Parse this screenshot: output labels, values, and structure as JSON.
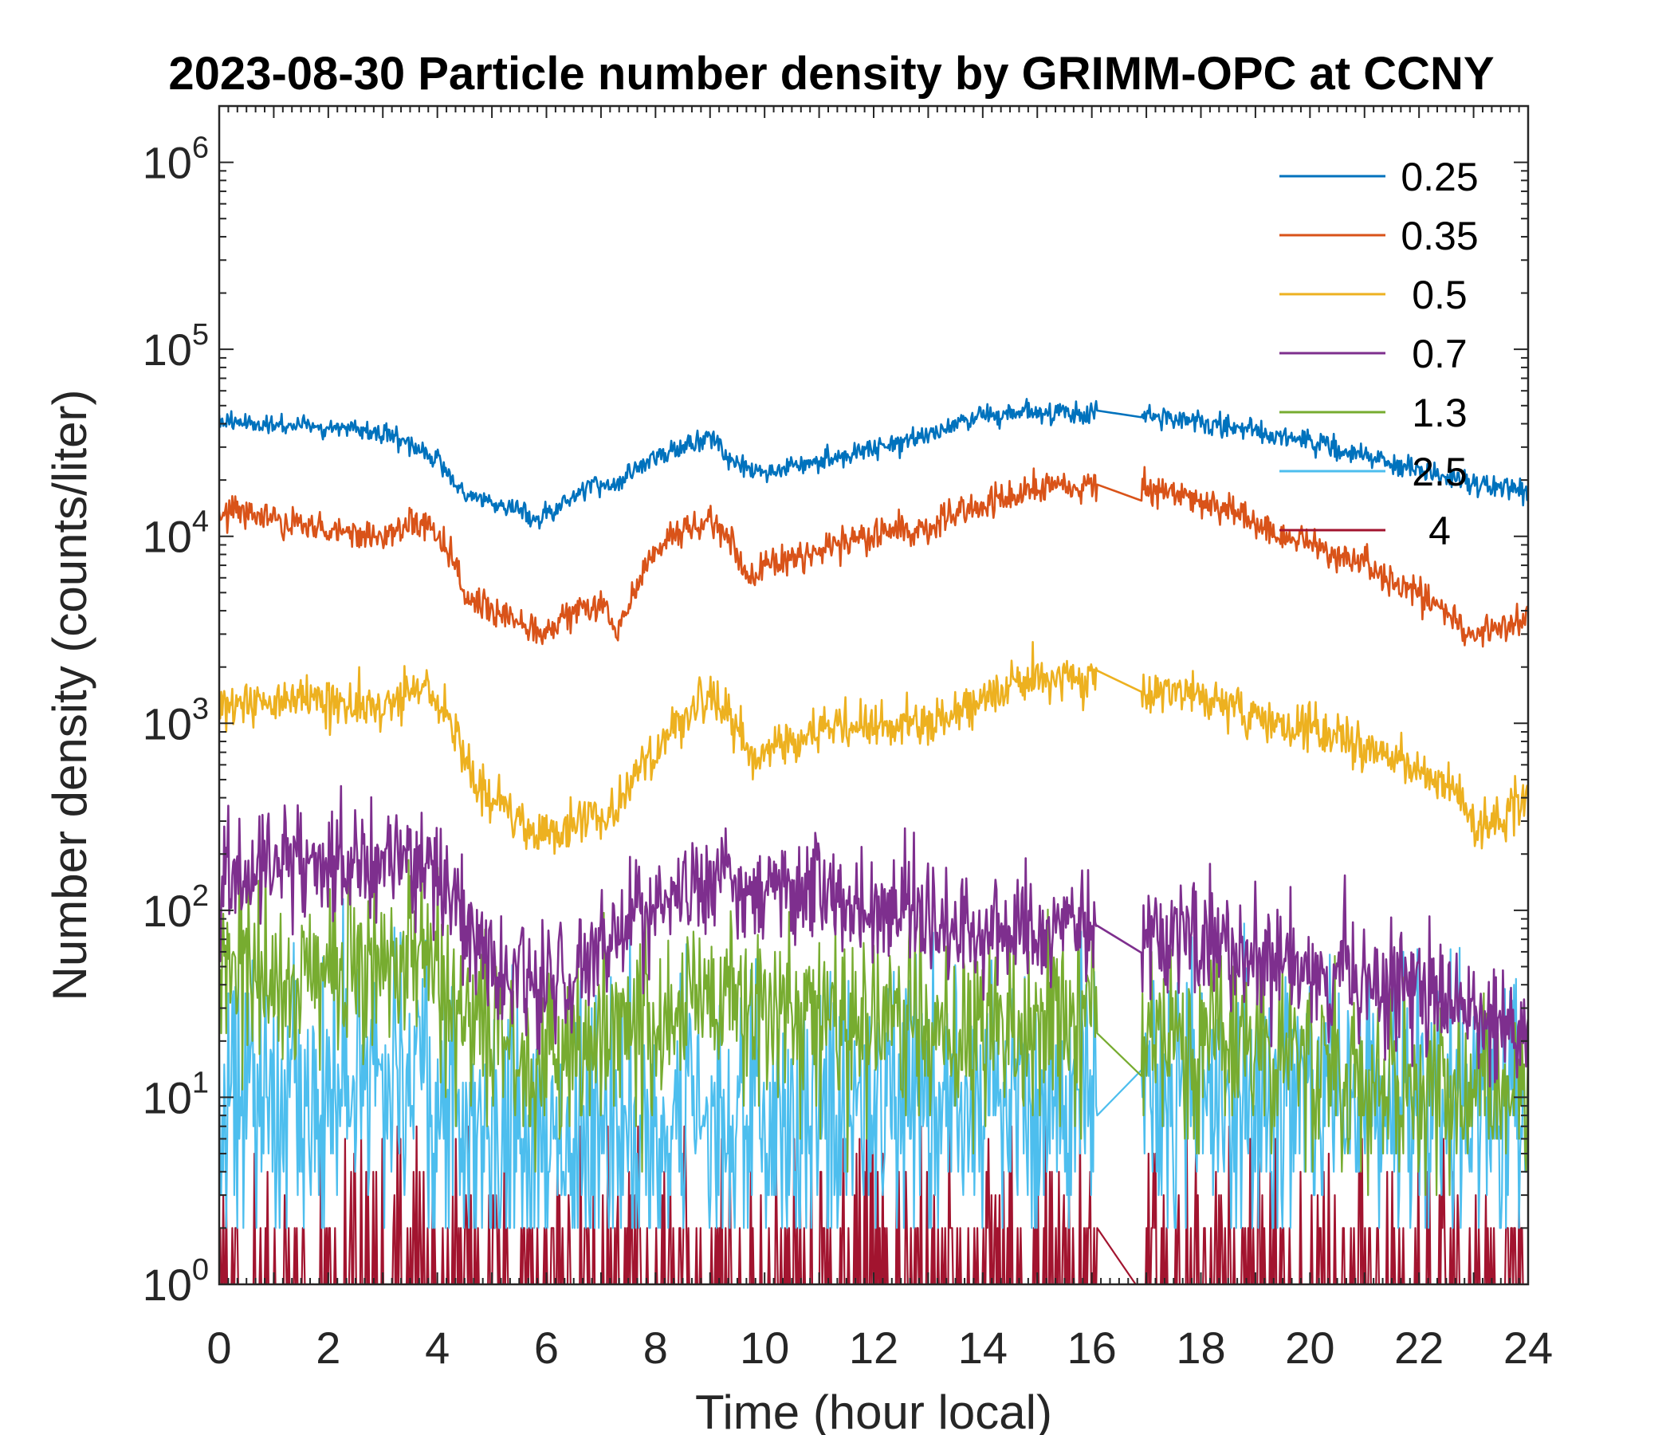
{
  "chart_data": {
    "type": "line",
    "title": "2023-08-30 Particle number density by GRIMM-OPC at CCNY",
    "xlabel": "Time (hour local)",
    "ylabel": "Number density (counts/liter)",
    "xlim": [
      0,
      24
    ],
    "ylim": [
      1,
      2000000
    ],
    "yscale": "log",
    "xticks": [
      "0",
      "2",
      "4",
      "6",
      "8",
      "10",
      "12",
      "14",
      "16",
      "18",
      "20",
      "22",
      "24"
    ],
    "yticks": [
      {
        "base": "10",
        "exp": "0"
      },
      {
        "base": "10",
        "exp": "1"
      },
      {
        "base": "10",
        "exp": "2"
      },
      {
        "base": "10",
        "exp": "3"
      },
      {
        "base": "10",
        "exp": "4"
      },
      {
        "base": "10",
        "exp": "5"
      },
      {
        "base": "10",
        "exp": "6"
      }
    ],
    "gap_hours": [
      16.1,
      16.9
    ],
    "legend_position": "top-right",
    "series": [
      {
        "name": "0.25",
        "color": "#0072BD",
        "x": [
          0,
          1,
          2,
          3,
          3.5,
          4,
          4.5,
          5,
          5.5,
          5.8,
          6.3,
          6.8,
          7.3,
          7.8,
          8.3,
          9,
          9.5,
          10,
          11,
          12,
          13,
          14,
          15,
          16,
          17,
          18,
          19,
          20,
          21,
          22,
          23,
          24
        ],
        "y": [
          42000,
          39000,
          38000,
          36000,
          31000,
          26000,
          17000,
          15000,
          14000,
          12000,
          15000,
          19000,
          19000,
          25000,
          29000,
          34000,
          24000,
          22000,
          25000,
          29000,
          35000,
          43000,
          46000,
          45000,
          44000,
          41000,
          36000,
          32000,
          27000,
          22000,
          19000,
          17000
        ],
        "noise": 0.04
      },
      {
        "name": "0.35",
        "color": "#D95319",
        "x": [
          0,
          1,
          2,
          3,
          3.8,
          4.2,
          4.6,
          5,
          5.6,
          6,
          6.5,
          7,
          7.3,
          7.8,
          8.3,
          9,
          9.4,
          9.7,
          10,
          11,
          12,
          13,
          14,
          15,
          16,
          17,
          18,
          19,
          20,
          21,
          22,
          22.5,
          23,
          23.6,
          24
        ],
        "y": [
          14000,
          12000,
          11000,
          10000,
          12500,
          8000,
          4500,
          4000,
          3300,
          3200,
          4000,
          4300,
          3200,
          6800,
          10000,
          12500,
          9000,
          6000,
          7000,
          8500,
          10500,
          11000,
          14500,
          18000,
          18500,
          18000,
          15500,
          12000,
          9000,
          7000,
          5000,
          3800,
          3000,
          3200,
          3800
        ],
        "noise": 0.06
      },
      {
        "name": "0.5",
        "color": "#EDB120",
        "x": [
          0,
          1,
          2,
          3,
          3.8,
          4.2,
          4.6,
          5,
          5.5,
          5.8,
          6.3,
          6.8,
          7.2,
          7.8,
          8.3,
          9,
          9.5,
          9.8,
          10.3,
          11,
          12,
          13,
          14,
          15,
          16,
          16.9,
          17.5,
          18,
          19,
          20,
          21,
          22,
          22.6,
          23.1,
          23.6,
          24
        ],
        "y": [
          1250,
          1300,
          1350,
          1200,
          1700,
          1050,
          550,
          380,
          300,
          250,
          270,
          320,
          330,
          620,
          900,
          1400,
          900,
          650,
          780,
          950,
          950,
          1000,
          1350,
          1800,
          1750,
          1350,
          1450,
          1400,
          1100,
          950,
          720,
          560,
          430,
          280,
          320,
          400
        ],
        "noise": 0.09
      },
      {
        "name": "0.7",
        "color": "#7E2F8E",
        "x": [
          0,
          1,
          2,
          3,
          3.8,
          4.3,
          4.8,
          5.3,
          6,
          6.8,
          7.5,
          8.3,
          9,
          9.5,
          10,
          11,
          12,
          13,
          14,
          15,
          16,
          17,
          18,
          19,
          20,
          21,
          22,
          23,
          24
        ],
        "y": [
          130,
          170,
          180,
          170,
          200,
          110,
          65,
          50,
          42,
          50,
          75,
          110,
          180,
          120,
          140,
          130,
          95,
          85,
          80,
          85,
          90,
          80,
          70,
          55,
          48,
          42,
          40,
          28,
          24
        ],
        "noise": 0.22
      },
      {
        "name": "1.3",
        "color": "#77AC30",
        "x": [
          0,
          1,
          2,
          3,
          3.8,
          4.3,
          5,
          6,
          7,
          8,
          9,
          10,
          11,
          12,
          13,
          14,
          15,
          16,
          17,
          18,
          19,
          20,
          21,
          22,
          23,
          24
        ],
        "y": [
          50,
          45,
          45,
          50,
          65,
          30,
          20,
          15,
          20,
          25,
          35,
          28,
          28,
          25,
          22,
          22,
          25,
          24,
          22,
          20,
          18,
          15,
          12,
          11,
          10,
          10
        ],
        "noise": 0.35
      },
      {
        "name": "2.5",
        "color": "#4DBEEE",
        "x": [
          0,
          1,
          2,
          3,
          4,
          5,
          6,
          7,
          8,
          9,
          10,
          11,
          12,
          13,
          14,
          15,
          16,
          17,
          18,
          19,
          20,
          21,
          22,
          23,
          24
        ],
        "y": [
          11,
          11,
          12,
          12,
          9,
          6,
          5,
          5,
          7,
          9,
          8,
          9,
          9,
          10,
          10,
          10,
          10,
          11,
          11,
          10,
          10,
          9,
          9,
          9,
          8
        ],
        "noise": 0.55
      },
      {
        "name": "4",
        "color": "#A2142F",
        "x": [
          0,
          6,
          12,
          18,
          24
        ],
        "y": [
          1.6,
          1.5,
          1.6,
          1.6,
          1.5
        ],
        "noise": 0.7
      }
    ]
  }
}
